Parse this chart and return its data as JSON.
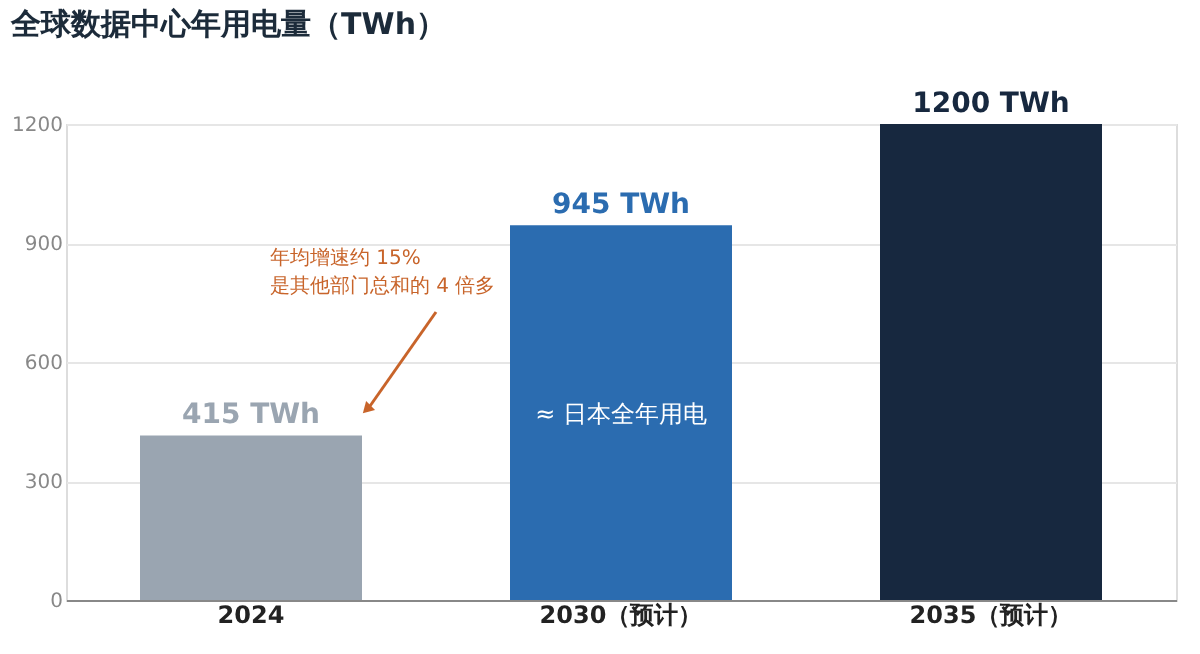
{
  "chart_data": {
    "type": "bar",
    "title": "全球数据中心年用电量（TWh）",
    "categories": [
      "2024",
      "2030（预计）",
      "2035（预计）"
    ],
    "values": [
      415,
      945,
      1200
    ],
    "colors": [
      "#9aa5b1",
      "#2b6cb0",
      "#17283f"
    ],
    "value_labels": [
      "415 TWh",
      "945 TWh",
      "1200 TWh"
    ],
    "ylim": [
      0,
      1200
    ],
    "yticks": [
      0,
      300,
      600,
      900,
      1200
    ],
    "grid": "y",
    "annotations": [
      "年均增速约 15%\n是其他部门总和的 4 倍多",
      "≈ 日本全年用电"
    ]
  }
}
